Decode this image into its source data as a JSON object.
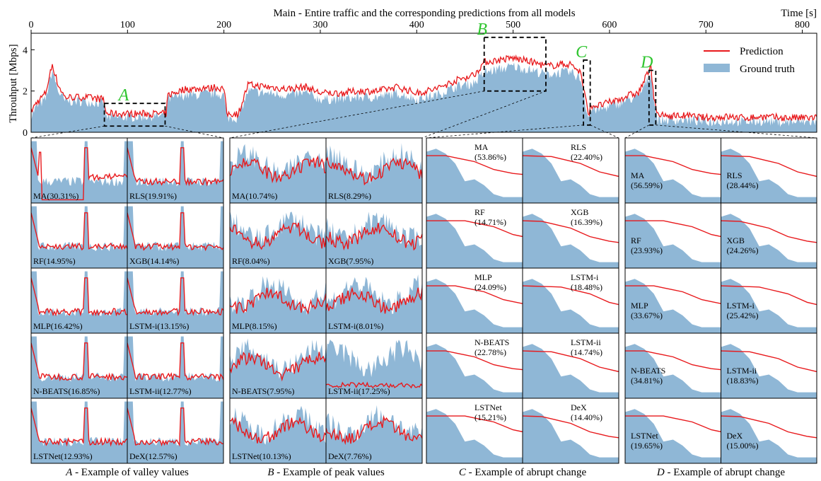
{
  "title_prefix": "Main",
  "title_rest": " - Entire traffic and the corresponding predictions from all models",
  "time_label": "Time [s]",
  "ylabel": "Throuhput [Mbps]",
  "x_ticks": [
    "0",
    "100",
    "200",
    "300",
    "400",
    "500",
    "600",
    "700",
    "800"
  ],
  "y_ticks": [
    "0",
    "2",
    "4"
  ],
  "legend": {
    "prediction": "Prediction",
    "ground_truth": "Ground truth"
  },
  "colors": {
    "prediction": "#e8191c",
    "ground_truth": "#8fb7d6",
    "box_letter": "#2fc52f"
  },
  "chart_data": {
    "type": "area",
    "xlabel": "Time [s]",
    "ylabel": "Throuhput [Mbps]",
    "xlim": [
      0,
      815
    ],
    "ylim": [
      0,
      4.8
    ],
    "grid": false,
    "legend_position": "top-right",
    "series": [
      {
        "name": "Ground truth",
        "type": "area",
        "x": [
          0,
          5,
          15,
          22,
          28,
          35,
          55,
          75,
          78,
          140,
          142,
          160,
          175,
          180,
          185,
          190,
          200,
          203,
          215,
          225,
          245,
          265,
          285,
          300,
          320,
          340,
          360,
          380,
          400,
          420,
          440,
          460,
          470,
          500,
          520,
          535,
          550,
          560,
          570,
          578,
          582,
          590,
          610,
          620,
          630,
          640,
          643,
          646,
          650,
          660,
          680,
          700,
          720,
          740,
          760,
          780,
          800,
          815
        ],
        "y": [
          0.8,
          1.2,
          1.6,
          3.0,
          2.0,
          1.5,
          1.5,
          1.4,
          0.7,
          0.8,
          1.6,
          1.8,
          1.8,
          1.9,
          1.8,
          1.9,
          1.8,
          0.7,
          0.7,
          2.0,
          1.9,
          1.8,
          1.9,
          1.6,
          1.6,
          1.7,
          1.7,
          1.9,
          1.6,
          1.8,
          2.2,
          2.4,
          2.9,
          3.2,
          3.0,
          2.8,
          2.9,
          2.9,
          2.6,
          0.7,
          1.1,
          1.1,
          1.4,
          1.6,
          1.7,
          2.6,
          2.8,
          1.5,
          0.6,
          0.6,
          0.6,
          0.5,
          0.55,
          0.5,
          0.55,
          0.5,
          0.5,
          0.5
        ]
      },
      {
        "name": "Prediction",
        "type": "line",
        "x": [
          0,
          5,
          15,
          22,
          28,
          35,
          55,
          75,
          78,
          140,
          142,
          160,
          175,
          180,
          185,
          190,
          200,
          203,
          215,
          225,
          245,
          265,
          285,
          300,
          320,
          340,
          360,
          380,
          400,
          420,
          440,
          460,
          470,
          500,
          520,
          535,
          550,
          560,
          570,
          578,
          582,
          590,
          610,
          620,
          630,
          640,
          643,
          646,
          650,
          660,
          680,
          700,
          720,
          740,
          760,
          780,
          800,
          815
        ],
        "y": [
          1.0,
          1.4,
          1.9,
          3.3,
          2.3,
          1.7,
          1.7,
          1.6,
          0.9,
          0.9,
          1.8,
          2.1,
          2.1,
          2.2,
          2.1,
          2.2,
          2.1,
          0.9,
          0.9,
          2.3,
          2.2,
          2.1,
          2.2,
          1.9,
          1.9,
          2.0,
          2.0,
          2.2,
          1.9,
          2.1,
          2.5,
          2.8,
          3.4,
          3.6,
          3.4,
          3.2,
          3.3,
          3.3,
          2.9,
          0.9,
          1.3,
          1.3,
          1.6,
          1.8,
          1.9,
          2.9,
          3.1,
          1.8,
          0.8,
          0.8,
          0.8,
          0.7,
          0.75,
          0.7,
          0.75,
          0.7,
          0.7,
          0.7
        ]
      }
    ],
    "regions": [
      {
        "label": "A",
        "x_range": [
          76,
          139
        ],
        "y_range": [
          0.3,
          1.4
        ],
        "caption_letter": "A",
        "caption_text": " - Example of valley values"
      },
      {
        "label": "B",
        "x_range": [
          470,
          534
        ],
        "y_range": [
          2.0,
          4.6
        ],
        "caption_letter": "B",
        "caption_text": " - Example of peak values"
      },
      {
        "label": "C",
        "x_range": [
          573,
          580
        ],
        "y_range": [
          0.35,
          3.5
        ],
        "caption_letter": "C",
        "caption_text": " - Example of abrupt change"
      },
      {
        "label": "D",
        "x_range": [
          641,
          648
        ],
        "y_range": [
          0.35,
          3.0
        ],
        "caption_letter": "D",
        "caption_text": " - Example of abrupt change"
      }
    ],
    "panels": {
      "A": [
        "MA(30.31%)",
        "RLS(19.91%)",
        "RF(14.95%)",
        "XGB(14.14%)",
        "MLP(16.42%)",
        "LSTM-i(13.15%)",
        "N-BEATS(16.85%)",
        "LSTM-ii(12.77%)",
        "LSTNet(12.93%)",
        "DeX(12.57%)"
      ],
      "B": [
        "MA(10.74%)",
        "RLS(8.29%)",
        "RF(8.04%)",
        "XGB(7.95%)",
        "MLP(8.15%)",
        "LSTM-i(8.01%)",
        "N-BEATS(7.95%)",
        "LSTM-ii(17.25%)",
        "LSTNet(10.13%)",
        "DeX(7.76%)"
      ],
      "C": [
        [
          "MA",
          "(53.86%)"
        ],
        [
          "RLS",
          "(22.40%)"
        ],
        [
          "RF",
          "(14.71%)"
        ],
        [
          "XGB",
          "(16.39%)"
        ],
        [
          "MLP",
          "(24.09%)"
        ],
        [
          "LSTM-i",
          "(18.48%)"
        ],
        [
          "N-BEATS",
          "(22.78%)"
        ],
        [
          "LSTM-ii",
          "(14.74%)"
        ],
        [
          "LSTNet",
          "(15.21%)"
        ],
        [
          "DeX",
          "(14.40%)"
        ]
      ],
      "D": [
        [
          "MA",
          "(56.59%)"
        ],
        [
          "RLS",
          "(28.44%)"
        ],
        [
          "RF",
          "(23.93%)"
        ],
        [
          "XGB",
          "(24.26%)"
        ],
        [
          "MLP",
          "(33.67%)"
        ],
        [
          "LSTM-i",
          "(25.42%)"
        ],
        [
          "N-BEATS",
          "(34.81%)"
        ],
        [
          "LSTM-ii",
          "(18.83%)"
        ],
        [
          "LSTNet",
          "(19.65%)"
        ],
        [
          "DeX",
          "(15.00%)"
        ]
      ]
    },
    "abrupt_ground_truth": [
      2.6,
      2.75,
      2.5,
      2.0,
      1.1,
      1.2,
      0.9,
      0.45,
      0.3,
      0.3,
      0.3
    ],
    "abrupt_prediction": [
      2.4,
      2.4,
      2.4,
      2.3,
      2.2,
      2.1,
      1.9,
      1.7,
      1.6,
      1.5,
      1.45
    ]
  }
}
